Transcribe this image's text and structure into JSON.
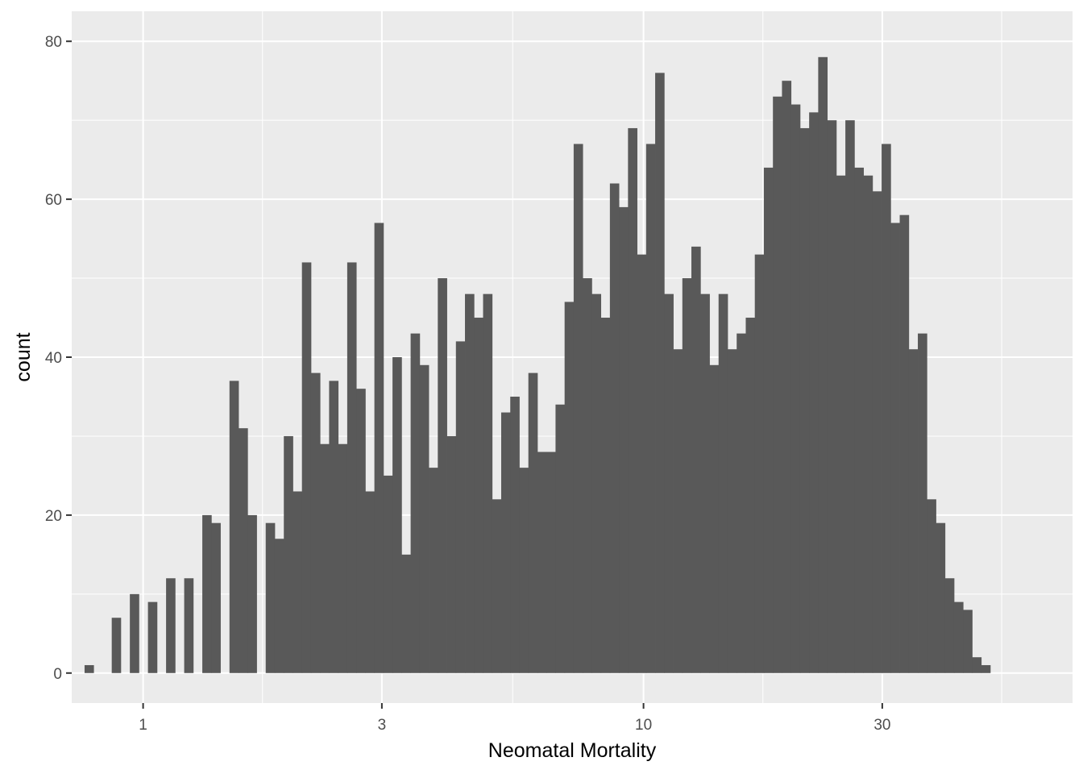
{
  "chart_data": {
    "type": "bar",
    "subtype": "histogram",
    "title": "",
    "xlabel": "Neomatal Mortality",
    "ylabel": "count",
    "x_scale": "log10",
    "xlim": [
      0.72,
      72
    ],
    "ylim": [
      -3.8,
      83.8
    ],
    "x_ticks": [
      1,
      3,
      10,
      30
    ],
    "x_tick_labels": [
      "1",
      "3",
      "10",
      "30"
    ],
    "y_ticks": [
      0,
      20,
      40,
      60,
      80
    ],
    "y_tick_labels": [
      "0",
      "20",
      "40",
      "60",
      "80"
    ],
    "grid": true,
    "legend": "none",
    "colors": {
      "bar": "#595959",
      "panel": "#ebebeb",
      "grid": "#ffffff",
      "tick_label": "#4d4d4d",
      "axis_title": "#000000"
    },
    "bin_log10_width": 0.0181,
    "bin_log10_start": -0.117,
    "bin_counts": [
      1,
      0,
      0,
      7,
      0,
      10,
      0,
      9,
      0,
      12,
      0,
      12,
      0,
      20,
      19,
      0,
      37,
      31,
      20,
      0,
      19,
      17,
      30,
      23,
      52,
      38,
      29,
      37,
      29,
      52,
      36,
      23,
      57,
      25,
      40,
      15,
      43,
      39,
      26,
      50,
      30,
      42,
      48,
      45,
      48,
      22,
      33,
      35,
      26,
      38,
      28,
      28,
      34,
      47,
      67,
      50,
      48,
      45,
      62,
      59,
      69,
      53,
      67,
      76,
      48,
      41,
      50,
      54,
      48,
      39,
      48,
      41,
      43,
      45,
      53,
      64,
      73,
      75,
      72,
      69,
      71,
      78,
      70,
      63,
      70,
      64,
      63,
      61,
      67,
      57,
      58,
      41,
      43,
      22,
      19,
      12,
      9,
      8,
      2,
      1
    ]
  }
}
